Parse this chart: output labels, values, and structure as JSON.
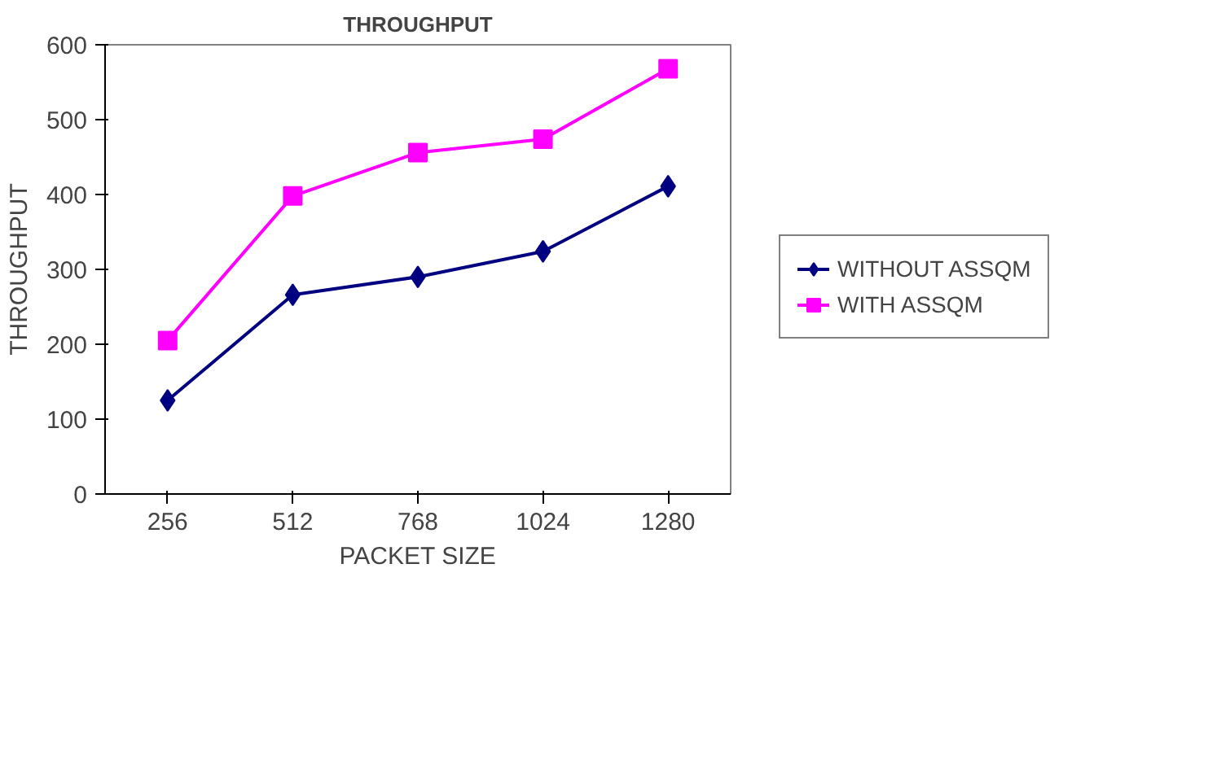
{
  "chart_data": {
    "type": "line",
    "title": "THROUGHPUT",
    "xlabel": "PACKET SIZE",
    "ylabel": "THROUGHPUT",
    "categories": [
      "256",
      "512",
      "768",
      "1024",
      "1280"
    ],
    "series": [
      {
        "name": "WITHOUT ASSQM",
        "color": "#000080",
        "marker": "diamond",
        "values": [
          125,
          266,
          290,
          324,
          411
        ]
      },
      {
        "name": "WITH ASSQM",
        "color": "#ff00ff",
        "marker": "square",
        "values": [
          205,
          398,
          456,
          474,
          568
        ]
      }
    ],
    "ylim": [
      0,
      600
    ],
    "yticks": [
      0,
      100,
      200,
      300,
      400,
      500,
      600
    ],
    "grid": false,
    "legend": "right",
    "line_style": "solid"
  }
}
